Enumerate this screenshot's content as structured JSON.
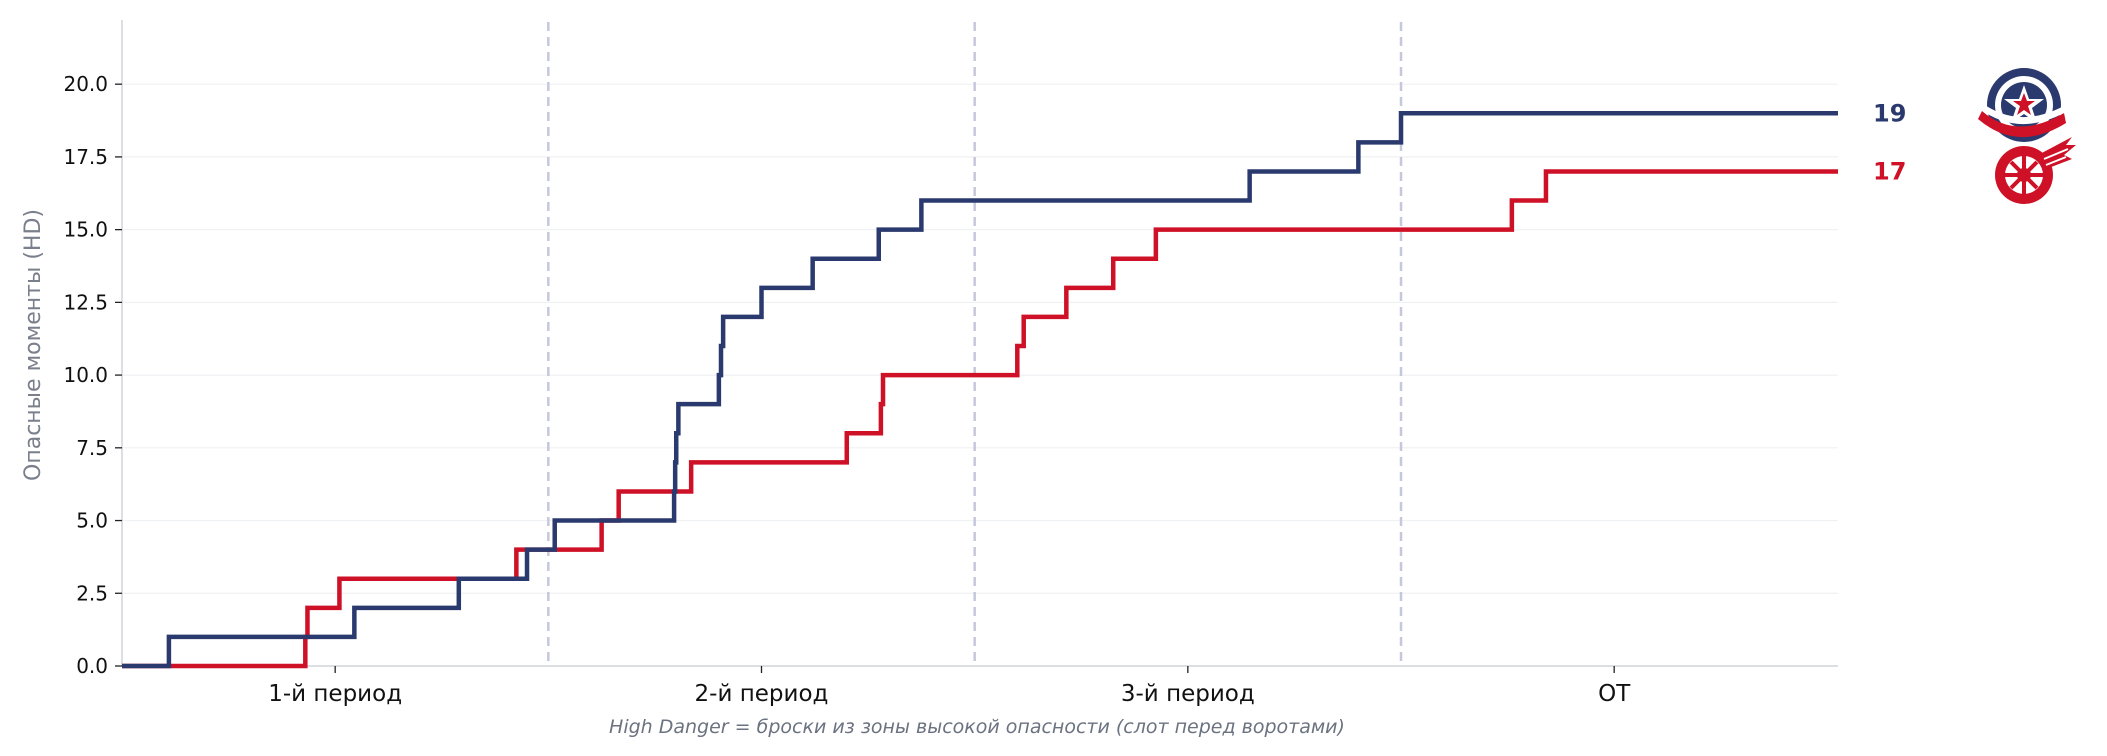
{
  "chart_data": {
    "type": "line",
    "step": true,
    "ylabel": "Опасные моменты (HD)",
    "xlabel": "",
    "note": "High Danger = броски из зоны высокой опасности (слот перед воротами)",
    "x_unit": "game minutes",
    "xlim": [
      0,
      80.5
    ],
    "ylim": [
      0,
      22
    ],
    "yticks": [
      0,
      2.5,
      5,
      7.5,
      10,
      12.5,
      15,
      17.5,
      20
    ],
    "ytick_labels": [
      "0.0",
      "2.5",
      "5.0",
      "7.5",
      "10.0",
      "12.5",
      "15.0",
      "17.5",
      "20.0"
    ],
    "period_boundaries": [
      20,
      40,
      60
    ],
    "periods": [
      {
        "label": "1-й период",
        "center": 10
      },
      {
        "label": "2-й период",
        "center": 30
      },
      {
        "label": "3-й период",
        "center": 50
      },
      {
        "label": "OT",
        "center": 70
      }
    ],
    "series": [
      {
        "name": "Columbus Blue Jackets",
        "team_icon": "blue-jackets-logo",
        "color": "#2b3a6e",
        "final": "19",
        "steps": [
          [
            0,
            0
          ],
          [
            2.2,
            1
          ],
          [
            10.9,
            2
          ],
          [
            15.8,
            3
          ],
          [
            19.0,
            4
          ],
          [
            20.3,
            5
          ],
          [
            25.9,
            6
          ],
          [
            25.95,
            7
          ],
          [
            26.0,
            8
          ],
          [
            26.1,
            9
          ],
          [
            28.0,
            10
          ],
          [
            28.1,
            11
          ],
          [
            28.2,
            12
          ],
          [
            30.0,
            13
          ],
          [
            32.4,
            14
          ],
          [
            35.5,
            15
          ],
          [
            37.5,
            16
          ],
          [
            52.9,
            17
          ],
          [
            58.0,
            18
          ],
          [
            60.0,
            19
          ],
          [
            80.5,
            19
          ]
        ]
      },
      {
        "name": "Detroit Red Wings",
        "team_icon": "red-wings-logo",
        "color": "#ce1126",
        "final": "17",
        "steps": [
          [
            0,
            0
          ],
          [
            8.6,
            1
          ],
          [
            8.7,
            2
          ],
          [
            10.2,
            3
          ],
          [
            18.5,
            4
          ],
          [
            22.5,
            5
          ],
          [
            23.3,
            6
          ],
          [
            26.7,
            7
          ],
          [
            34.0,
            8
          ],
          [
            35.6,
            9
          ],
          [
            35.7,
            10
          ],
          [
            42.0,
            11
          ],
          [
            42.3,
            12
          ],
          [
            44.3,
            13
          ],
          [
            46.5,
            14
          ],
          [
            48.5,
            15
          ],
          [
            65.2,
            16
          ],
          [
            66.8,
            17
          ],
          [
            80.5,
            17
          ]
        ]
      }
    ]
  }
}
